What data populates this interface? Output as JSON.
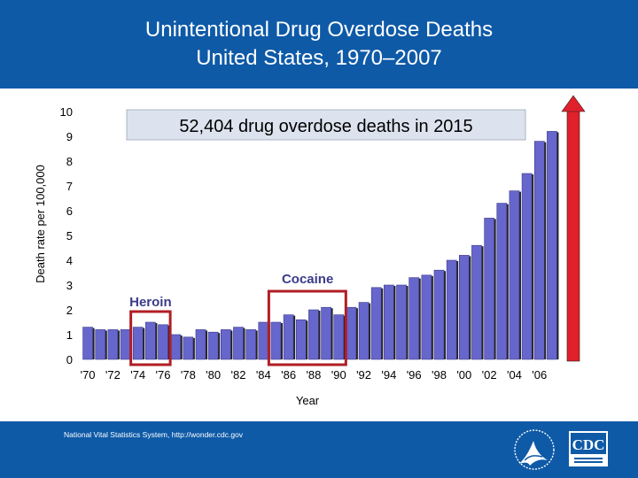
{
  "header": {
    "title_line1": "Unintentional Drug Overdose Deaths",
    "title_line2": "United States, 1970–2007"
  },
  "footer": {
    "source": "National Vital Statistics System, http://wonder.cdc.gov",
    "cdc_logo_text": "CDC"
  },
  "colors": {
    "header_bg": "#0e5aa7",
    "bar_fill": "#6666cc",
    "bar_edge": "#000000",
    "highlight_box": "#b01e24",
    "arrow": "#e0202a",
    "callout_bg": "#dce3ee"
  },
  "chart_data": {
    "type": "bar",
    "ylabel": "Death rate per 100,000",
    "xlabel": "Year",
    "ylim": [
      0,
      10
    ],
    "yticks": [
      "0",
      "1",
      "2",
      "3",
      "4",
      "5",
      "6",
      "7",
      "8",
      "9",
      "10"
    ],
    "tick_labels": [
      "'70",
      "'72",
      "'74",
      "'76",
      "'78",
      "'80",
      "'82",
      "'84",
      "'86",
      "'88",
      "'90",
      "'92",
      "'94",
      "'96",
      "'98",
      "'00",
      "'02",
      "'04",
      "'06"
    ],
    "years": [
      1970,
      1971,
      1972,
      1973,
      1974,
      1975,
      1976,
      1977,
      1978,
      1979,
      1980,
      1981,
      1982,
      1983,
      1984,
      1985,
      1986,
      1987,
      1988,
      1989,
      1990,
      1991,
      1992,
      1993,
      1994,
      1995,
      1996,
      1997,
      1998,
      1999,
      2000,
      2001,
      2002,
      2003,
      2004,
      2005,
      2006,
      2007
    ],
    "values": [
      1.3,
      1.2,
      1.2,
      1.2,
      1.3,
      1.5,
      1.4,
      1.0,
      0.9,
      1.2,
      1.1,
      1.2,
      1.3,
      1.2,
      1.5,
      1.5,
      1.8,
      1.6,
      2.0,
      2.1,
      1.8,
      2.1,
      2.3,
      2.9,
      3.0,
      3.0,
      3.3,
      3.4,
      3.6,
      4.0,
      4.2,
      4.6,
      5.7,
      6.3,
      6.8,
      7.5,
      8.8,
      9.2
    ],
    "grid": false,
    "annotations": {
      "callout": "52,404 drug overdose deaths in 2015",
      "heroin_label": "Heroin",
      "cocaine_label": "Cocaine",
      "heroin_range": [
        1974,
        1975,
        1976
      ],
      "cocaine_range": [
        1985,
        1986,
        1987,
        1988,
        1989,
        1990
      ]
    }
  }
}
